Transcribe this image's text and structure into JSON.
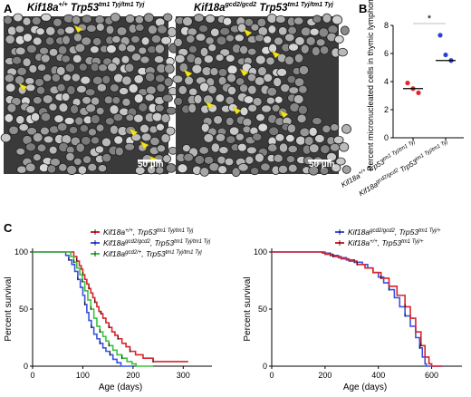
{
  "panels": {
    "a": {
      "letter": "A",
      "images": [
        {
          "title_gene": "Kif18a",
          "title_gene_sup": "+/+",
          "title_gene2": " Trp53",
          "title_gene2_sup": "tm1 Tyj/tm1 Tyj",
          "scale": "50 µm"
        },
        {
          "title_gene": "Kif18a",
          "title_gene_sup": "gcd2/gcd2",
          "title_gene2": " Trp53",
          "title_gene2_sup": "tm1 Tyj/tm1 Tyj",
          "scale": "50 µm"
        }
      ]
    },
    "b": {
      "letter": "B"
    },
    "c": {
      "letter": "C"
    }
  },
  "chart_data": [
    {
      "type": "scatter",
      "ylabel": "Percent micronucleated cells in thymic lymphoma",
      "ylim": [
        0,
        8
      ],
      "yticks": [
        "0",
        "2",
        "4",
        "6",
        "8"
      ],
      "categories": [
        "Kif18a+/+ Trp53tm1 Tyj/tm1 Tyj",
        "Kif18agcd2/gcd2 Trp53tm1 Tyj/tm1 Tyj"
      ],
      "category_labels": [
        {
          "gene": "Kif18a",
          "gene_sup": "+/+",
          "gene2": " Trp53",
          "gene2_sup": "tm1 Tyj/tm1 Tyj"
        },
        {
          "gene": "Kif18a",
          "gene_sup": "gcd2/gcd2",
          "gene2": " Trp53",
          "gene2_sup": "tm1 Tyj/tm1 Tyj"
        }
      ],
      "series": [
        {
          "color": "#e8232a",
          "points": [
            3.9,
            3.5,
            3.2
          ],
          "median": 3.5
        },
        {
          "color": "#2b3fd9",
          "points": [
            7.3,
            5.9,
            5.5
          ],
          "median": 5.5
        }
      ],
      "significance": "*"
    },
    {
      "type": "line",
      "ylabel": "Percent survival",
      "xlabel": "Age (days)",
      "xlim": [
        0,
        350
      ],
      "ylim": [
        0,
        100
      ],
      "xticks": [
        "0",
        "100",
        "200",
        "300"
      ],
      "yticks": [
        "0",
        "50",
        "100"
      ],
      "legend": [
        {
          "gene": "Kif18a",
          "gene_sup": "+/+",
          "gene2": ", Trp53",
          "gene2_sup": "tm1 Tyj/tm1 Tyj",
          "color": "#d7242a"
        },
        {
          "gene": "Kif18a",
          "gene_sup": "gcd2/gcd2",
          "gene2": ", Trp53",
          "gene2_sup": "tm1 Tyj/tm1 Tyj",
          "color": "#3a52e0"
        },
        {
          "gene": "Kif18a",
          "gene_sup": "gcd2/+",
          "gene2": ", Trp53",
          "gene2_sup": "tm1 Tyj/tm1 Tyj",
          "color": "#3fbf3f"
        }
      ],
      "series": [
        {
          "color": "#d7242a",
          "steps": [
            [
              0,
              100
            ],
            [
              75,
              100
            ],
            [
              82,
              96
            ],
            [
              88,
              92
            ],
            [
              93,
              88
            ],
            [
              97,
              85
            ],
            [
              100,
              80
            ],
            [
              104,
              76
            ],
            [
              108,
              72
            ],
            [
              112,
              68
            ],
            [
              116,
              64
            ],
            [
              120,
              60
            ],
            [
              124,
              56
            ],
            [
              128,
              52
            ],
            [
              132,
              48
            ],
            [
              136,
              46
            ],
            [
              140,
              42
            ],
            [
              146,
              38
            ],
            [
              152,
              34
            ],
            [
              158,
              30
            ],
            [
              164,
              27
            ],
            [
              170,
              24
            ],
            [
              178,
              20
            ],
            [
              186,
              17
            ],
            [
              194,
              13
            ],
            [
              205,
              10
            ],
            [
              220,
              7
            ],
            [
              240,
              4
            ],
            [
              310,
              4
            ]
          ]
        },
        {
          "color": "#3a52e0",
          "steps": [
            [
              0,
              100
            ],
            [
              62,
              100
            ],
            [
              66,
              97
            ],
            [
              72,
              93
            ],
            [
              78,
              89
            ],
            [
              84,
              83
            ],
            [
              90,
              76
            ],
            [
              95,
              69
            ],
            [
              100,
              62
            ],
            [
              104,
              54
            ],
            [
              108,
              47
            ],
            [
              112,
              40
            ],
            [
              117,
              34
            ],
            [
              122,
              28
            ],
            [
              128,
              24
            ],
            [
              134,
              20
            ],
            [
              140,
              16
            ],
            [
              146,
              13
            ],
            [
              154,
              10
            ],
            [
              160,
              6
            ],
            [
              168,
              3
            ],
            [
              176,
              0
            ],
            [
              200,
              0
            ]
          ]
        },
        {
          "color": "#3fbf3f",
          "steps": [
            [
              0,
              100
            ],
            [
              70,
              100
            ],
            [
              76,
              96
            ],
            [
              82,
              91
            ],
            [
              88,
              86
            ],
            [
              94,
              80
            ],
            [
              99,
              74
            ],
            [
              104,
              66
            ],
            [
              110,
              58
            ],
            [
              116,
              50
            ],
            [
              122,
              42
            ],
            [
              128,
              35
            ],
            [
              134,
              30
            ],
            [
              140,
              26
            ],
            [
              146,
              22
            ],
            [
              152,
              18
            ],
            [
              160,
              14
            ],
            [
              168,
              10
            ],
            [
              178,
              7
            ],
            [
              188,
              4
            ],
            [
              198,
              2
            ],
            [
              206,
              0
            ],
            [
              240,
              0
            ]
          ]
        }
      ]
    },
    {
      "type": "line",
      "ylabel": "Percent survival",
      "xlabel": "Age (days)",
      "xlim": [
        0,
        700
      ],
      "ylim": [
        0,
        100
      ],
      "xticks": [
        "0",
        "200",
        "400",
        "600"
      ],
      "yticks": [
        "0",
        "50",
        "100"
      ],
      "legend": [
        {
          "gene": "Kif18a",
          "gene_sup": "gcd2/gcd2",
          "gene2": ", Trp53",
          "gene2_sup": "tm1 Tyj/+",
          "color": "#3a52e0"
        },
        {
          "gene": "Kif18a",
          "gene_sup": "+/+",
          "gene2": ", Trp53",
          "gene2_sup": "tm1 Tyj/+",
          "color": "#d7242a"
        }
      ],
      "series": [
        {
          "color": "#3a52e0",
          "steps": [
            [
              0,
              100
            ],
            [
              140,
              100
            ],
            [
              190,
              99
            ],
            [
              220,
              97
            ],
            [
              250,
              95
            ],
            [
              280,
              93
            ],
            [
              310,
              91
            ],
            [
              340,
              89
            ],
            [
              360,
              86
            ],
            [
              380,
              82
            ],
            [
              400,
              78
            ],
            [
              420,
              73
            ],
            [
              440,
              67
            ],
            [
              460,
              60
            ],
            [
              480,
              52
            ],
            [
              500,
              44
            ],
            [
              520,
              35
            ],
            [
              540,
              25
            ],
            [
              555,
              16
            ],
            [
              565,
              8
            ],
            [
              575,
              2
            ],
            [
              580,
              0
            ],
            [
              640,
              0
            ]
          ]
        },
        {
          "color": "#d7242a",
          "steps": [
            [
              0,
              100
            ],
            [
              160,
              100
            ],
            [
              200,
              98
            ],
            [
              230,
              96
            ],
            [
              260,
              94
            ],
            [
              290,
              92
            ],
            [
              320,
              89
            ],
            [
              350,
              86
            ],
            [
              380,
              82
            ],
            [
              410,
              77
            ],
            [
              440,
              70
            ],
            [
              470,
              62
            ],
            [
              500,
              52
            ],
            [
              520,
              42
            ],
            [
              540,
              30
            ],
            [
              560,
              18
            ],
            [
              575,
              8
            ],
            [
              590,
              2
            ],
            [
              600,
              0
            ],
            [
              640,
              0
            ]
          ]
        }
      ]
    }
  ]
}
